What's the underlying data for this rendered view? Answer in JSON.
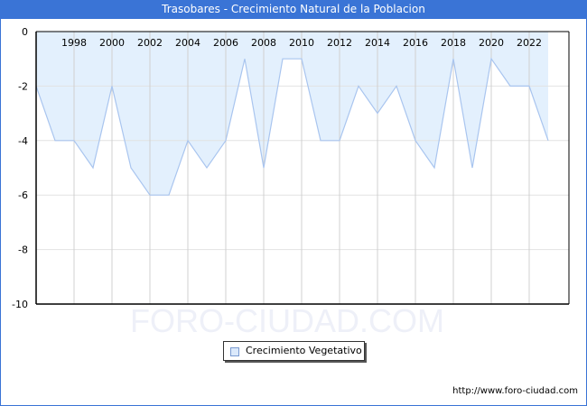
{
  "header": {
    "title": "Trasobares - Crecimiento Natural de la Poblacion"
  },
  "watermark": "FORO-CIUDAD.COM",
  "footer": {
    "url": "http://www.foro-ciudad.com"
  },
  "legend": {
    "label": "Crecimiento Vegetativo"
  },
  "colors": {
    "title_bg": "#3a74d6",
    "fill": "#e3f0fd",
    "line": "#a9c5ef",
    "grid": "#d0d0d0"
  },
  "chart_data": {
    "type": "area",
    "title": "Trasobares - Crecimiento Natural de la Poblacion",
    "xlabel": "",
    "ylabel": "",
    "x": [
      1996,
      1997,
      1998,
      1999,
      2000,
      2001,
      2002,
      2003,
      2004,
      2005,
      2006,
      2007,
      2008,
      2009,
      2010,
      2011,
      2012,
      2013,
      2014,
      2015,
      2016,
      2017,
      2018,
      2019,
      2020,
      2021,
      2022,
      2023
    ],
    "series": [
      {
        "name": "Crecimiento Vegetativo",
        "values": [
          -2,
          -4,
          -4,
          -5,
          -2,
          -5,
          -6,
          -6,
          -4,
          -5,
          -4,
          -1,
          -5,
          -1,
          -1,
          -4,
          -4,
          -2,
          -3,
          -2,
          -4,
          -5,
          -1,
          -5,
          -1,
          -2,
          -2,
          -4
        ]
      }
    ],
    "x_tick_labels": [
      "1998",
      "2000",
      "2002",
      "2004",
      "2006",
      "2008",
      "2010",
      "2012",
      "2014",
      "2016",
      "2018",
      "2020",
      "2022"
    ],
    "y_tick_labels": [
      "0",
      "-2",
      "-4",
      "-6",
      "-8",
      "-10"
    ],
    "ylim": [
      -10,
      0
    ],
    "grid": true,
    "legend_position": "bottom"
  }
}
